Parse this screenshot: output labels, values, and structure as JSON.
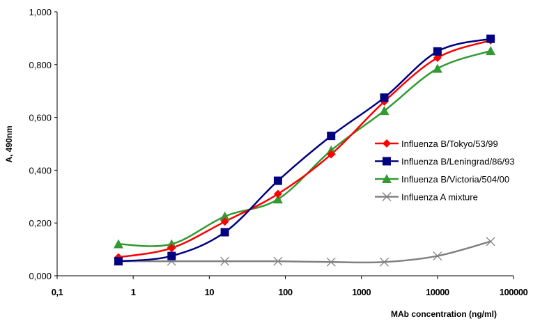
{
  "chart_data": {
    "type": "line",
    "title": "",
    "xlabel": "MAb concentration (ng/ml)",
    "ylabel": "A, 490nm",
    "xscale": "log",
    "xlim": [
      0.1,
      100000
    ],
    "ylim": [
      0,
      1
    ],
    "x_tick_values": [
      0.1,
      1,
      10,
      100,
      1000,
      10000,
      100000
    ],
    "x_tick_labels": [
      "0,1",
      "1",
      "10",
      "100",
      "1000",
      "10000",
      "100000"
    ],
    "y_tick_values": [
      0,
      0.2,
      0.4,
      0.6,
      0.8,
      1.0
    ],
    "y_tick_labels": [
      "0,000",
      "0,200",
      "0,400",
      "0,600",
      "0,800",
      "1,000"
    ],
    "grid": false,
    "legend_position": "right",
    "x": [
      0.64,
      3.2,
      16,
      80,
      400,
      2000,
      10000,
      50000
    ],
    "series": [
      {
        "name": "Influenza B/Tokyo/53/99",
        "color": "#ff0000",
        "marker": "diamond",
        "values": [
          0.07,
          0.105,
          0.205,
          0.31,
          0.46,
          0.66,
          0.826,
          0.892
        ]
      },
      {
        "name": "Influenza B/Leningrad/86/93",
        "color": "#000080",
        "marker": "square",
        "values": [
          0.055,
          0.075,
          0.165,
          0.36,
          0.53,
          0.675,
          0.85,
          0.898
        ]
      },
      {
        "name": "Influenza B/Victoria/504/00",
        "color": "#339933",
        "marker": "triangle",
        "values": [
          0.12,
          0.12,
          0.225,
          0.29,
          0.475,
          0.625,
          0.785,
          0.852
        ]
      },
      {
        "name": "Influenza A mixture",
        "color": "#808080",
        "marker": "x",
        "values": [
          0.055,
          0.055,
          0.055,
          0.055,
          0.052,
          0.052,
          0.075,
          0.13
        ]
      }
    ]
  }
}
